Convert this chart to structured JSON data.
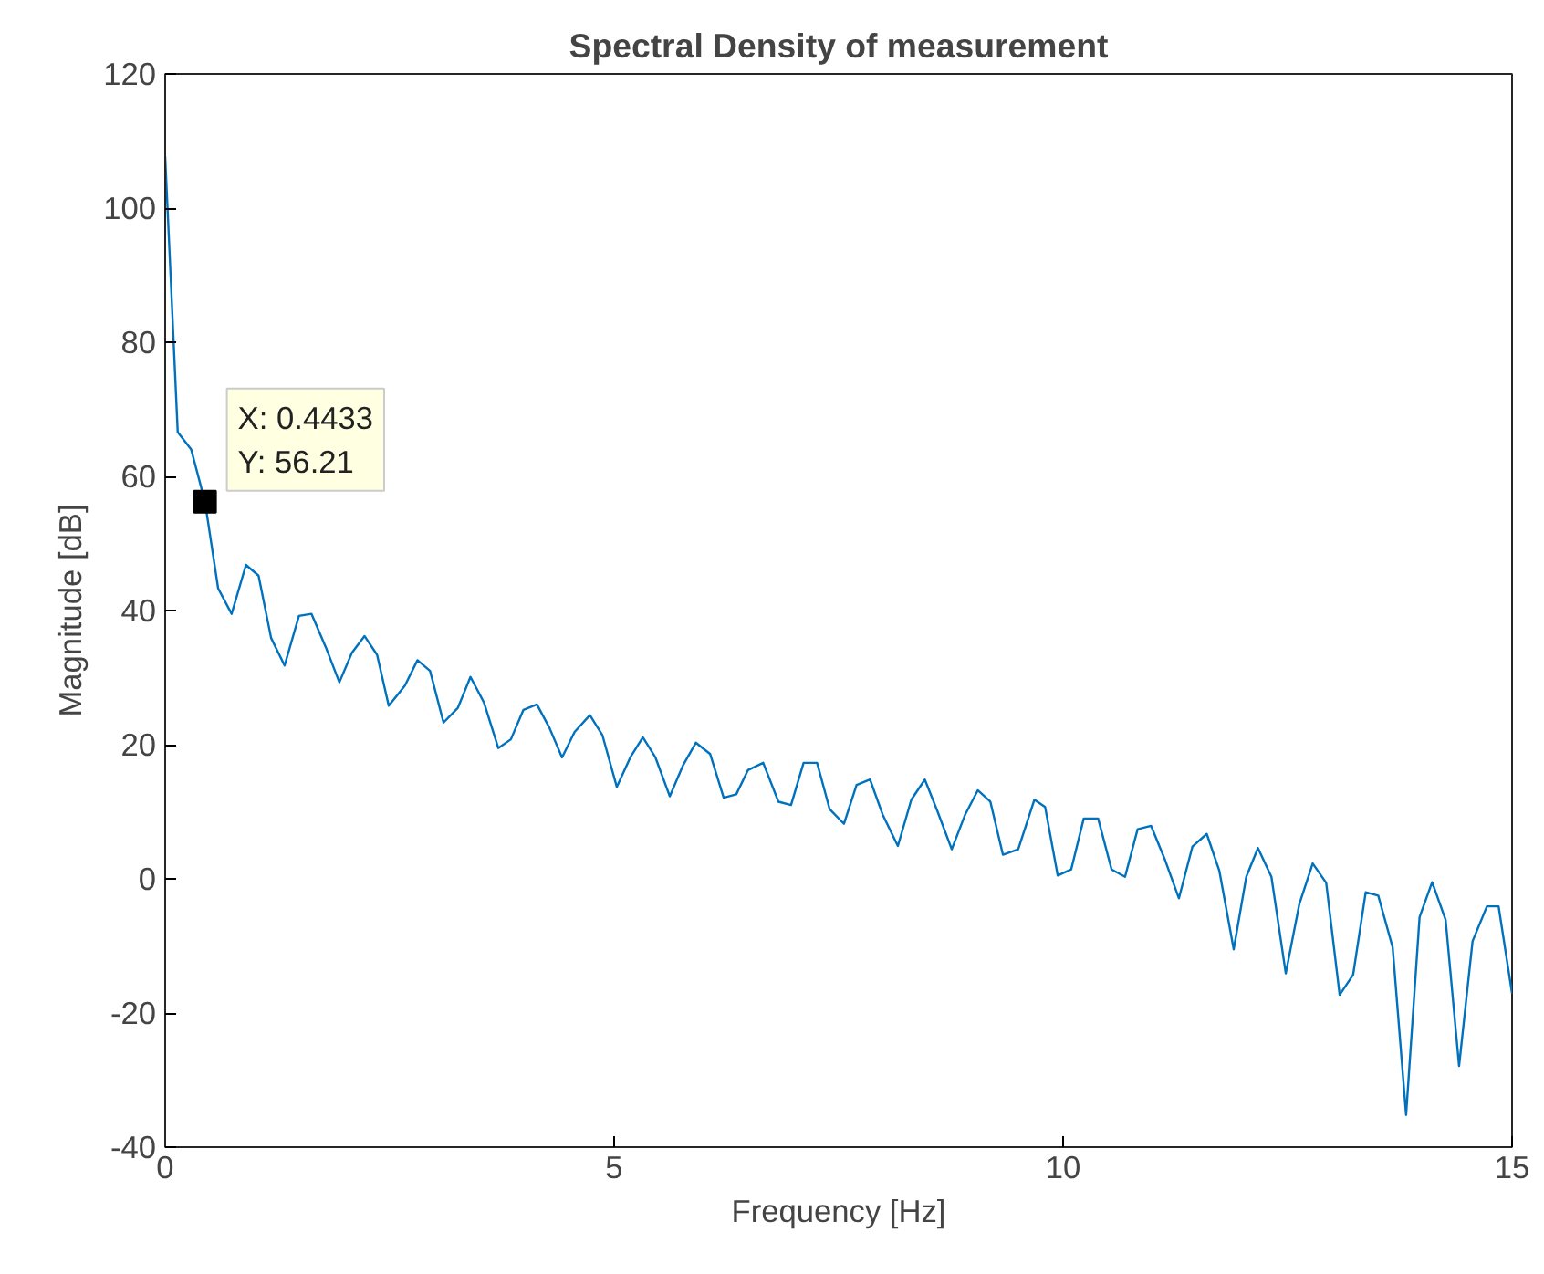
{
  "chart_data": {
    "type": "line",
    "title": "Spectral Density of measurement",
    "xlabel": "Frequency [Hz]",
    "ylabel": "Magnitude [dB]",
    "xlim": [
      0,
      15
    ],
    "ylim": [
      -40,
      120
    ],
    "xticks": [
      0,
      5,
      10,
      15
    ],
    "yticks": [
      -40,
      -20,
      0,
      20,
      40,
      60,
      80,
      100,
      120
    ],
    "grid": false,
    "marker": "none",
    "line_style": "solid",
    "series": [
      {
        "color": "#0072bd",
        "x": [
          0,
          0.14,
          0.29,
          0.4433,
          0.59,
          0.74,
          0.9,
          1.04,
          1.18,
          1.33,
          1.49,
          1.63,
          1.79,
          1.94,
          2.08,
          2.22,
          2.36,
          2.49,
          2.67,
          2.81,
          2.95,
          3.1,
          3.26,
          3.4,
          3.55,
          3.71,
          3.85,
          3.99,
          4.14,
          4.28,
          4.42,
          4.56,
          4.73,
          4.87,
          5.03,
          5.18,
          5.32,
          5.46,
          5.62,
          5.77,
          5.91,
          6.07,
          6.22,
          6.36,
          6.49,
          6.66,
          6.83,
          6.97,
          7.11,
          7.26,
          7.4,
          7.56,
          7.7,
          7.85,
          7.99,
          8.16,
          8.31,
          8.46,
          8.6,
          8.76,
          8.91,
          9.05,
          9.19,
          9.33,
          9.5,
          9.68,
          9.8,
          9.94,
          10.09,
          10.23,
          10.39,
          10.54,
          10.69,
          10.83,
          10.98,
          11.13,
          11.29,
          11.44,
          11.6,
          11.74,
          11.9,
          12.04,
          12.17,
          12.32,
          12.48,
          12.63,
          12.78,
          12.93,
          13.08,
          13.23,
          13.37,
          13.51,
          13.67,
          13.82,
          13.97,
          14.11,
          14.26,
          14.41,
          14.56,
          14.72,
          14.85,
          15.0
        ],
        "values": [
          107.7,
          66.6,
          64,
          56.21,
          43.3,
          39.5,
          46.8,
          45.2,
          35.9,
          31.8,
          39.2,
          39.5,
          34.5,
          29.3,
          33.7,
          36.2,
          33.4,
          25.8,
          28.8,
          32.6,
          31,
          23.3,
          25.5,
          30.1,
          26.3,
          19.5,
          20.8,
          25.2,
          26,
          22.5,
          18.1,
          21.9,
          24.4,
          21.4,
          13.7,
          18.1,
          21.1,
          18.1,
          12.3,
          17,
          20.3,
          18.6,
          12.1,
          12.6,
          16.2,
          17.3,
          11.5,
          11,
          17.3,
          17.3,
          10.4,
          8.2,
          14,
          14.8,
          9.6,
          4.9,
          11.8,
          14.8,
          10.1,
          4.4,
          9.6,
          13.2,
          11.5,
          3.6,
          4.4,
          11.8,
          10.7,
          0.5,
          1.4,
          9.0,
          9.0,
          1.4,
          0.3,
          7.4,
          7.9,
          3.0,
          -2.9,
          4.8,
          6.7,
          1.2,
          -10.5,
          0.3,
          4.6,
          0.3,
          -14.1,
          -3.8,
          2.3,
          -0.6,
          -17.3,
          -14.3,
          -2.0,
          -2.5,
          -10.2,
          -35.2,
          -5.7,
          -0.5,
          -6.1,
          -27.9,
          -9.3,
          -4.1,
          -4.1,
          -17.1
        ]
      }
    ],
    "annotations": [
      {
        "text": "X: 0.4433\nY: 56.21",
        "x": 0.4433,
        "y": 56.21
      }
    ]
  }
}
